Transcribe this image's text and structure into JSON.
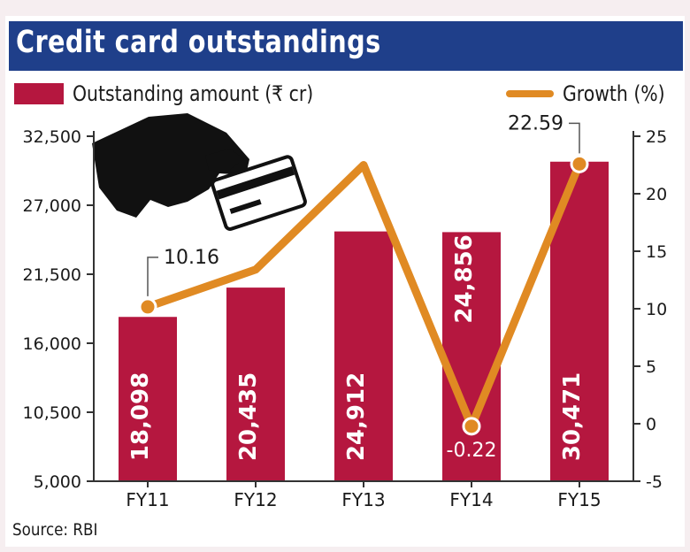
{
  "title": "Credit card outstandings",
  "source": "Source: RBI",
  "legend": {
    "bar_label": "Outstanding amount (₹ cr)",
    "line_label": "Growth (%)"
  },
  "colors": {
    "bar": "#b5173f",
    "line": "#e08a23",
    "title_bg": "#1f3f8a",
    "axis": "#333333"
  },
  "icon": "hand-holding-card-icon",
  "chart_data": {
    "type": "bar",
    "categories": [
      "FY11",
      "FY12",
      "FY13",
      "FY14",
      "FY15"
    ],
    "series": [
      {
        "name": "Outstanding amount (₹ cr)",
        "type": "bar",
        "axis": "left",
        "values": [
          18098,
          20435,
          24912,
          24856,
          30471
        ],
        "labels": [
          "18,098",
          "20,435",
          "24,912",
          "24,856",
          "30,471"
        ]
      },
      {
        "name": "Growth (%)",
        "type": "line",
        "axis": "right",
        "values": [
          10.16,
          13.4,
          22.5,
          -0.22,
          22.59
        ],
        "labels": [
          "10.16",
          "",
          "",
          "-0.22",
          "22.59"
        ]
      }
    ],
    "y_left": {
      "ticks": [
        5000,
        10500,
        16000,
        21500,
        27000,
        32500
      ],
      "tick_labels": [
        "5,000",
        "10,500",
        "16,000",
        "21,500",
        "27,000",
        "32,500"
      ],
      "range": [
        5000,
        32500
      ]
    },
    "y_right": {
      "ticks": [
        -5,
        0,
        5,
        10,
        15,
        20,
        25
      ],
      "tick_labels": [
        "-5",
        "0",
        "5",
        "10",
        "15",
        "20",
        "25"
      ],
      "range": [
        -5,
        25
      ]
    },
    "xlabel": "",
    "ylabel": "",
    "grid": false,
    "legend_position": "top"
  }
}
